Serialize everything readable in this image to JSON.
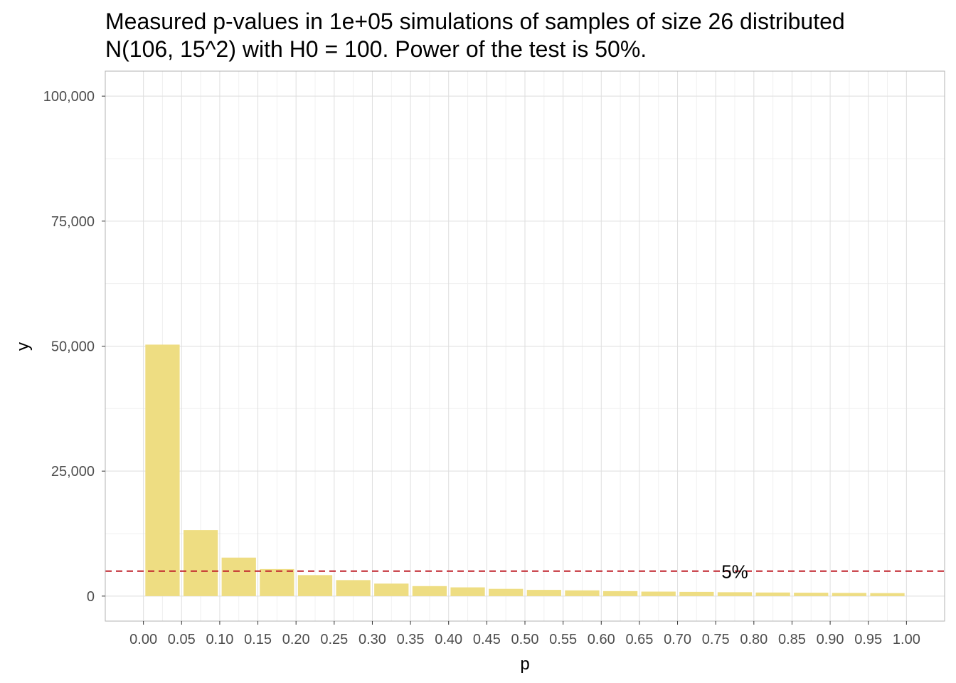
{
  "chart_data": {
    "type": "bar",
    "title": [
      "Measured p-values in 1e+05 simulations of samples of size 26 distributed",
      "N(106, 15^2) with H0 = 100. Power of the test is 50%."
    ],
    "xlabel": "p",
    "ylabel": "y",
    "bin_width": 0.05,
    "x": [
      0.025,
      0.075,
      0.125,
      0.175,
      0.225,
      0.275,
      0.325,
      0.375,
      0.425,
      0.475,
      0.525,
      0.575,
      0.625,
      0.675,
      0.725,
      0.775,
      0.825,
      0.875,
      0.925,
      0.975
    ],
    "values": [
      50300,
      13200,
      7700,
      5400,
      4200,
      3200,
      2500,
      2000,
      1750,
      1450,
      1250,
      1150,
      1000,
      900,
      850,
      780,
      720,
      680,
      640,
      600
    ],
    "bar_color": "#EEDD82",
    "x_ticks": [
      0.0,
      0.05,
      0.1,
      0.15,
      0.2,
      0.25,
      0.3,
      0.35,
      0.4,
      0.45,
      0.5,
      0.55,
      0.6,
      0.65,
      0.7,
      0.75,
      0.8,
      0.85,
      0.9,
      0.95,
      1.0
    ],
    "x_tick_labels": [
      "0.00",
      "0.05",
      "0.10",
      "0.15",
      "0.20",
      "0.25",
      "0.30",
      "0.35",
      "0.40",
      "0.45",
      "0.50",
      "0.55",
      "0.60",
      "0.65",
      "0.70",
      "0.75",
      "0.80",
      "0.85",
      "0.90",
      "0.95",
      "1.00"
    ],
    "y_ticks": [
      0,
      25000,
      50000,
      75000,
      100000
    ],
    "y_tick_labels": [
      "0",
      "25,000",
      "50,000",
      "75,000",
      "100,000"
    ],
    "xlim": [
      -0.05,
      1.05
    ],
    "ylim": [
      -5000,
      105000
    ],
    "grid": true,
    "reference_line": {
      "y": 5000,
      "color": "#C0202A",
      "style": "dashed",
      "label": "5%",
      "label_x": 0.775
    }
  }
}
